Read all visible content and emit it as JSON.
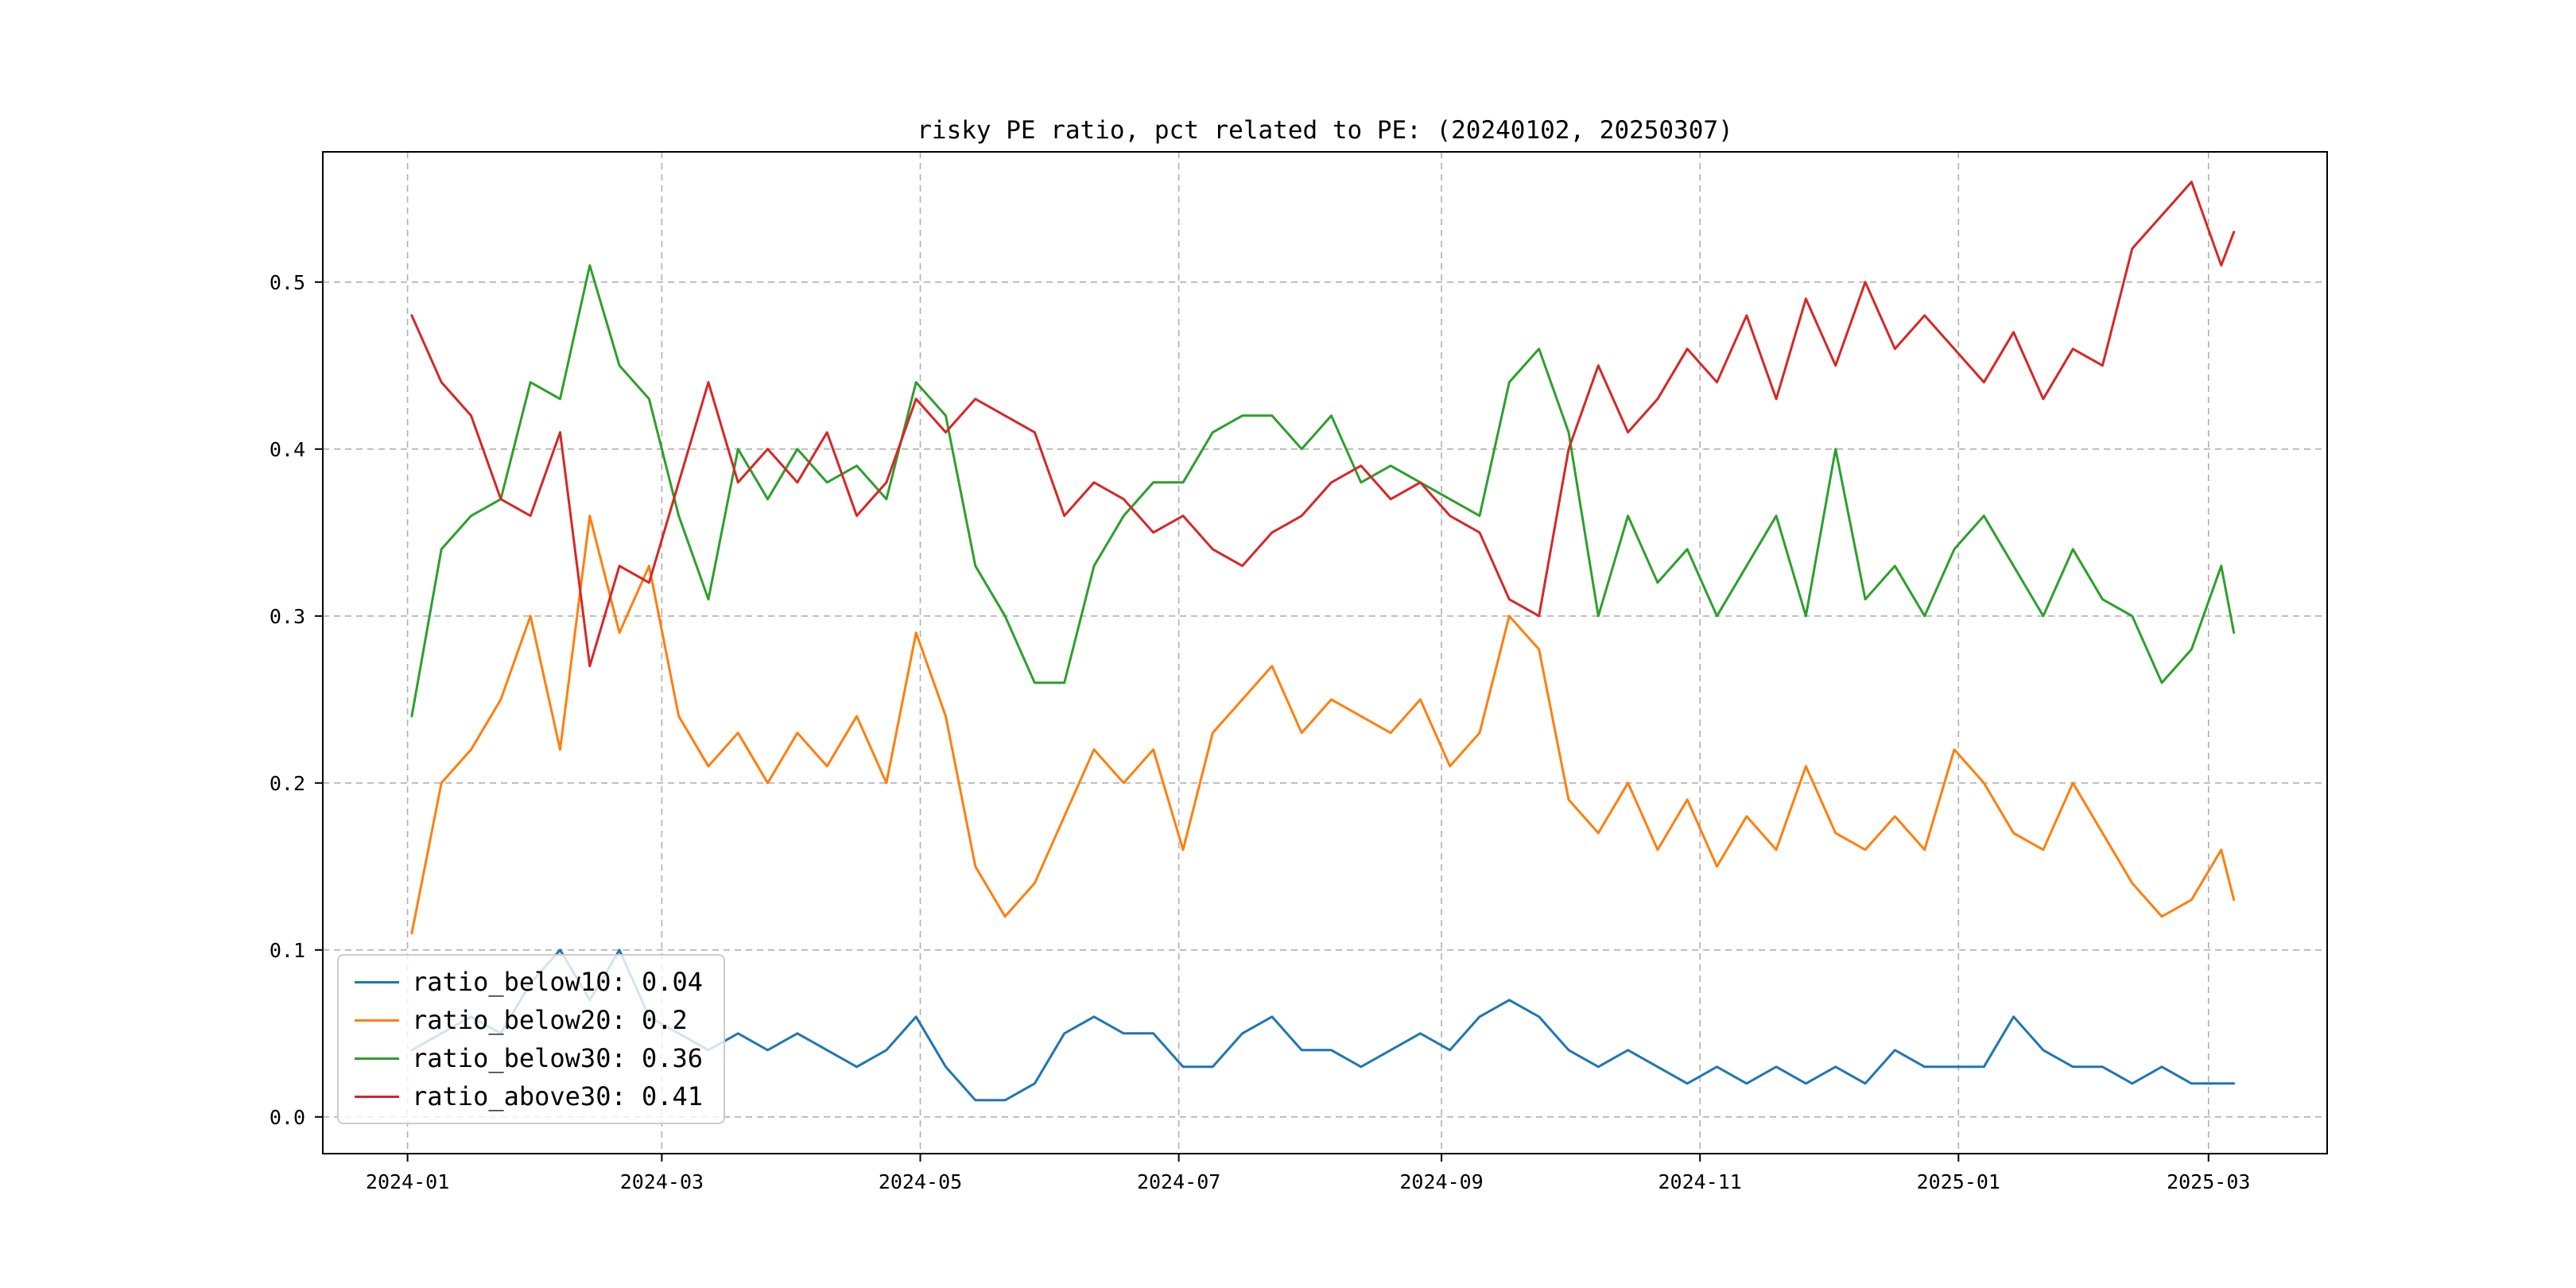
{
  "chart_data": {
    "type": "line",
    "title": "risky PE ratio, pct related to PE: (20240102, 20250307)",
    "xlabel": "",
    "ylabel": "",
    "grid": "dashed",
    "grid_color": "#b0b0b0",
    "background": "#ffffff",
    "legend": {
      "loc": "lower left"
    },
    "xlim_dates": [
      "2023-12-12",
      "2025-03-29"
    ],
    "ylim": [
      -0.022,
      0.578
    ],
    "yticks": [
      "0.0",
      "0.1",
      "0.2",
      "0.3",
      "0.4",
      "0.5"
    ],
    "xticks": [
      {
        "label": "2024-01",
        "date": "2024-01-01"
      },
      {
        "label": "2024-03",
        "date": "2024-03-01"
      },
      {
        "label": "2024-05",
        "date": "2024-05-01"
      },
      {
        "label": "2024-07",
        "date": "2024-07-01"
      },
      {
        "label": "2024-09",
        "date": "2024-09-01"
      },
      {
        "label": "2024-11",
        "date": "2024-11-01"
      },
      {
        "label": "2025-01",
        "date": "2025-01-01"
      },
      {
        "label": "2025-03",
        "date": "2025-03-01"
      }
    ],
    "x": [
      "2024-01-02",
      "2024-01-09",
      "2024-01-16",
      "2024-01-23",
      "2024-01-30",
      "2024-02-06",
      "2024-02-13",
      "2024-02-20",
      "2024-02-27",
      "2024-03-05",
      "2024-03-12",
      "2024-03-19",
      "2024-03-26",
      "2024-04-02",
      "2024-04-09",
      "2024-04-16",
      "2024-04-23",
      "2024-04-30",
      "2024-05-07",
      "2024-05-14",
      "2024-05-21",
      "2024-05-28",
      "2024-06-04",
      "2024-06-11",
      "2024-06-18",
      "2024-06-25",
      "2024-07-02",
      "2024-07-09",
      "2024-07-16",
      "2024-07-23",
      "2024-07-30",
      "2024-08-06",
      "2024-08-13",
      "2024-08-20",
      "2024-08-27",
      "2024-09-03",
      "2024-09-10",
      "2024-09-17",
      "2024-09-24",
      "2024-10-01",
      "2024-10-08",
      "2024-10-15",
      "2024-10-22",
      "2024-10-29",
      "2024-11-05",
      "2024-11-12",
      "2024-11-19",
      "2024-11-26",
      "2024-12-03",
      "2024-12-10",
      "2024-12-17",
      "2024-12-24",
      "2024-12-31",
      "2025-01-07",
      "2025-01-14",
      "2025-01-21",
      "2025-01-28",
      "2025-02-04",
      "2025-02-11",
      "2025-02-18",
      "2025-02-25",
      "2025-03-04",
      "2025-03-07"
    ],
    "series": [
      {
        "name": "ratio_below10",
        "legend_label": "ratio_below10: 0.04",
        "last_value": 0.04,
        "color": "#1f77b4",
        "values": [
          0.04,
          0.05,
          0.06,
          0.05,
          0.08,
          0.1,
          0.07,
          0.1,
          0.06,
          0.05,
          0.04,
          0.05,
          0.04,
          0.05,
          0.04,
          0.03,
          0.04,
          0.06,
          0.03,
          0.01,
          0.01,
          0.02,
          0.05,
          0.06,
          0.05,
          0.05,
          0.03,
          0.03,
          0.05,
          0.06,
          0.04,
          0.04,
          0.03,
          0.04,
          0.05,
          0.04,
          0.06,
          0.07,
          0.06,
          0.04,
          0.03,
          0.04,
          0.03,
          0.02,
          0.03,
          0.02,
          0.03,
          0.02,
          0.03,
          0.02,
          0.04,
          0.03,
          0.03,
          0.03,
          0.06,
          0.04,
          0.03,
          0.03,
          0.02,
          0.03,
          0.02,
          0.02,
          0.02
        ]
      },
      {
        "name": "ratio_below20",
        "legend_label": "ratio_below20: 0.2",
        "last_value": 0.2,
        "color": "#ff7f0e",
        "values": [
          0.11,
          0.2,
          0.22,
          0.25,
          0.3,
          0.22,
          0.36,
          0.29,
          0.33,
          0.24,
          0.21,
          0.23,
          0.2,
          0.23,
          0.21,
          0.24,
          0.2,
          0.29,
          0.24,
          0.15,
          0.12,
          0.14,
          0.18,
          0.22,
          0.2,
          0.22,
          0.16,
          0.23,
          0.25,
          0.27,
          0.23,
          0.25,
          0.24,
          0.23,
          0.25,
          0.21,
          0.23,
          0.3,
          0.28,
          0.19,
          0.17,
          0.2,
          0.16,
          0.19,
          0.15,
          0.18,
          0.16,
          0.21,
          0.17,
          0.16,
          0.18,
          0.16,
          0.22,
          0.2,
          0.17,
          0.16,
          0.2,
          0.17,
          0.14,
          0.12,
          0.13,
          0.16,
          0.13
        ]
      },
      {
        "name": "ratio_below30",
        "legend_label": "ratio_below30: 0.36",
        "last_value": 0.36,
        "color": "#2ca02c",
        "values": [
          0.24,
          0.34,
          0.36,
          0.37,
          0.44,
          0.43,
          0.51,
          0.45,
          0.43,
          0.36,
          0.31,
          0.4,
          0.37,
          0.4,
          0.38,
          0.39,
          0.37,
          0.44,
          0.42,
          0.33,
          0.3,
          0.26,
          0.26,
          0.33,
          0.36,
          0.38,
          0.38,
          0.41,
          0.42,
          0.42,
          0.4,
          0.42,
          0.38,
          0.39,
          0.38,
          0.37,
          0.36,
          0.44,
          0.46,
          0.41,
          0.3,
          0.36,
          0.32,
          0.34,
          0.3,
          0.33,
          0.36,
          0.3,
          0.4,
          0.31,
          0.33,
          0.3,
          0.34,
          0.36,
          0.33,
          0.3,
          0.34,
          0.31,
          0.3,
          0.26,
          0.28,
          0.33,
          0.29
        ]
      },
      {
        "name": "ratio_above30",
        "legend_label": "ratio_above30: 0.41",
        "last_value": 0.41,
        "color": "#d62728",
        "values": [
          0.48,
          0.44,
          0.42,
          0.37,
          0.36,
          0.41,
          0.27,
          0.33,
          0.32,
          0.38,
          0.44,
          0.38,
          0.4,
          0.38,
          0.41,
          0.36,
          0.38,
          0.43,
          0.41,
          0.43,
          0.42,
          0.41,
          0.36,
          0.38,
          0.37,
          0.35,
          0.36,
          0.34,
          0.33,
          0.35,
          0.36,
          0.38,
          0.39,
          0.37,
          0.38,
          0.36,
          0.35,
          0.31,
          0.3,
          0.4,
          0.45,
          0.41,
          0.43,
          0.46,
          0.44,
          0.48,
          0.43,
          0.49,
          0.45,
          0.5,
          0.46,
          0.48,
          0.46,
          0.44,
          0.47,
          0.43,
          0.46,
          0.45,
          0.52,
          0.54,
          0.56,
          0.51,
          0.53
        ]
      }
    ]
  }
}
